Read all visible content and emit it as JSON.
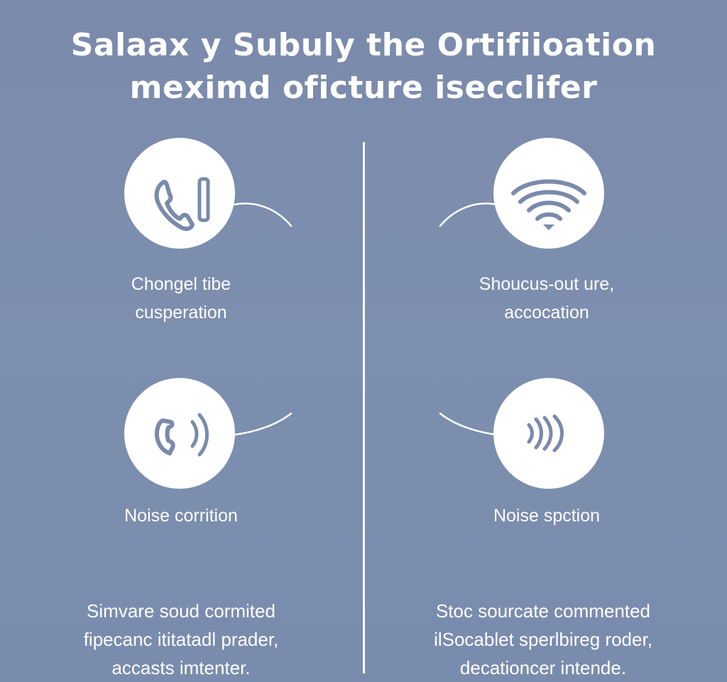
{
  "title": {
    "line1": "Salaax y Subuly the Ortifiioation",
    "line2": "meximd oficture isecclifer"
  },
  "features": {
    "call": {
      "icon": "phone-signal-icon",
      "label_line1": "Chongel tibe",
      "label_line2": "cusperation"
    },
    "wifi": {
      "icon": "wifi-icon",
      "label_line1": "Shoucus-out ure,",
      "label_line2": "accocation"
    },
    "noise_left": {
      "icon": "phone-sound-waves-icon",
      "label": "Noise corrition"
    },
    "noise_right": {
      "icon": "sound-waves-icon",
      "label": "Noise spction"
    }
  },
  "descriptions": {
    "left": {
      "line1": "Simvare soud cormited",
      "line2": "fipecanc ititatadl prader,",
      "line3": "accasts imtenter."
    },
    "right": {
      "line1": "Stoc sourcate commented",
      "line2": "ilSocablet sperlbireg roder,",
      "line3": "decationcer intende."
    }
  },
  "colors": {
    "background": "#7b8dad",
    "foreground": "#ffffff",
    "icon": "#7a8aab"
  }
}
